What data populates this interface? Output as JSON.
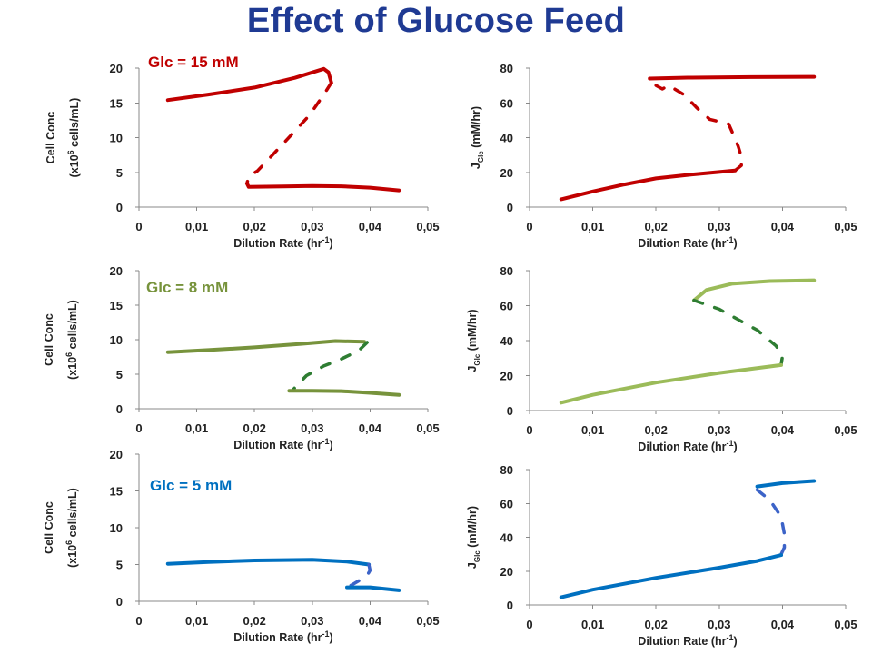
{
  "title": "Effect of Glucose Feed",
  "chart_data": [
    {
      "id": "cell-glc15",
      "type": "line",
      "annotation": "Glc = 15 mM",
      "color": "#c00000",
      "xlabel": "Dilution Rate (hr",
      "xlabel_sup": "-1",
      "xlabel_end": ")",
      "ylabel_line1": "Cell Conc",
      "ylabel_pre": "(x10",
      "ylabel_sup": "6",
      "ylabel_post": " cells/mL)",
      "xlim": [
        0,
        0.05
      ],
      "ylim": [
        0,
        20
      ],
      "xticks": [
        "0",
        "0,01",
        "0,02",
        "0,03",
        "0,04",
        "0,05"
      ],
      "yticks": [
        "0",
        "5",
        "10",
        "15",
        "20"
      ],
      "series": [
        {
          "style": "solid",
          "points": [
            [
              0.005,
              15.4
            ],
            [
              0.012,
              16.2
            ],
            [
              0.02,
              17.2
            ],
            [
              0.027,
              18.6
            ],
            [
              0.032,
              19.9
            ],
            [
              0.0328,
              19.4
            ],
            [
              0.0333,
              17.9
            ]
          ]
        },
        {
          "style": "dashed",
          "points": [
            [
              0.0333,
              17.9
            ],
            [
              0.032,
              16.2
            ],
            [
              0.0295,
              13.2
            ],
            [
              0.0265,
              10.5
            ],
            [
              0.023,
              7.4
            ],
            [
              0.0205,
              5.2
            ],
            [
              0.019,
              4.4
            ],
            [
              0.0187,
              3.4
            ]
          ]
        },
        {
          "style": "solid",
          "points": [
            [
              0.0187,
              3.4
            ],
            [
              0.019,
              2.9
            ],
            [
              0.025,
              2.98
            ],
            [
              0.03,
              3.05
            ],
            [
              0.035,
              3.0
            ],
            [
              0.04,
              2.8
            ],
            [
              0.045,
              2.4
            ]
          ]
        }
      ]
    },
    {
      "id": "flux-glc15",
      "type": "line",
      "color": "#c00000",
      "xlabel": "Dilution Rate (hr",
      "xlabel_sup": "-1",
      "xlabel_end": ")",
      "ylabel_pre": "J",
      "ylabel_sub": "Glc",
      "ylabel_post": " (mM/hr)",
      "xlim": [
        0,
        0.05
      ],
      "ylim": [
        0,
        80
      ],
      "xticks": [
        "0",
        "0,01",
        "0,02",
        "0,03",
        "0,04",
        "0,05"
      ],
      "yticks": [
        "0",
        "20",
        "40",
        "60",
        "80"
      ],
      "series": [
        {
          "style": "solid",
          "points": [
            [
              0.019,
              74
            ],
            [
              0.025,
              74.5
            ],
            [
              0.035,
              74.8
            ],
            [
              0.045,
              75
            ]
          ]
        },
        {
          "style": "dashed",
          "points": [
            [
              0.02,
              70
            ],
            [
              0.021,
              68
            ],
            [
              0.022,
              70
            ],
            [
              0.0245,
              64.5
            ],
            [
              0.0265,
              57
            ],
            [
              0.0285,
              50.5
            ],
            [
              0.0315,
              47.8
            ],
            [
              0.0322,
              42
            ],
            [
              0.033,
              35
            ],
            [
              0.0335,
              29
            ],
            [
              0.0335,
              24
            ],
            [
              0.0325,
              21
            ]
          ]
        },
        {
          "style": "solid",
          "points": [
            [
              0.005,
              4.5
            ],
            [
              0.01,
              9
            ],
            [
              0.015,
              13
            ],
            [
              0.02,
              16.5
            ],
            [
              0.025,
              18.5
            ],
            [
              0.0325,
              21
            ]
          ]
        }
      ]
    },
    {
      "id": "cell-glc8",
      "type": "line",
      "annotation": "Glc = 8 mM",
      "color": "#77933c",
      "xlabel": "Dilution Rate (hr",
      "xlabel_sup": "-1",
      "xlabel_end": ")",
      "ylabel_line1": "Cell Conc",
      "ylabel_pre": "(x10",
      "ylabel_sup": "6",
      "ylabel_post": " cells/mL)",
      "xlim": [
        0,
        0.05
      ],
      "ylim": [
        0,
        20
      ],
      "xticks": [
        "0",
        "0,01",
        "0,02",
        "0,03",
        "0,04",
        "0,05"
      ],
      "yticks": [
        "0",
        "5",
        "10",
        "15",
        "20"
      ],
      "series": [
        {
          "style": "solid",
          "points": [
            [
              0.005,
              8.2
            ],
            [
              0.012,
              8.5
            ],
            [
              0.02,
              8.9
            ],
            [
              0.028,
              9.4
            ],
            [
              0.034,
              9.8
            ],
            [
              0.039,
              9.7
            ]
          ]
        },
        {
          "style": "dashed",
          "color_override": "#2e7d32",
          "points": [
            [
              0.0395,
              9.6
            ],
            [
              0.038,
              8.4
            ],
            [
              0.035,
              7.2
            ],
            [
              0.032,
              6.2
            ],
            [
              0.029,
              4.8
            ],
            [
              0.0275,
              3.5
            ],
            [
              0.0265,
              2.6
            ]
          ]
        },
        {
          "style": "solid",
          "points": [
            [
              0.026,
              2.6
            ],
            [
              0.03,
              2.6
            ],
            [
              0.035,
              2.55
            ],
            [
              0.04,
              2.3
            ],
            [
              0.045,
              2.0
            ]
          ]
        }
      ]
    },
    {
      "id": "flux-glc8",
      "type": "line",
      "color": "#9bbb59",
      "xlabel": "Dilution Rate (hr",
      "xlabel_sup": "-1",
      "xlabel_end": ")",
      "ylabel_pre": "J",
      "ylabel_sub": "Glc",
      "ylabel_post": " (mM/hr)",
      "xlim": [
        0,
        0.05
      ],
      "ylim": [
        0,
        80
      ],
      "xticks": [
        "0",
        "0,01",
        "0,02",
        "0,03",
        "0,04",
        "0,05"
      ],
      "yticks": [
        "0",
        "20",
        "40",
        "60",
        "80"
      ],
      "series": [
        {
          "style": "solid",
          "points": [
            [
              0.026,
              63
            ],
            [
              0.028,
              69
            ],
            [
              0.032,
              72.5
            ],
            [
              0.038,
              74
            ],
            [
              0.045,
              74.5
            ]
          ]
        },
        {
          "style": "dashed",
          "color_override": "#2e7d32",
          "points": [
            [
              0.026,
              63
            ],
            [
              0.03,
              58
            ],
            [
              0.033,
              52
            ],
            [
              0.036,
              46
            ],
            [
              0.039,
              37
            ],
            [
              0.04,
              31
            ],
            [
              0.0398,
              26.5
            ]
          ]
        },
        {
          "style": "solid",
          "points": [
            [
              0.005,
              4.5
            ],
            [
              0.01,
              9
            ],
            [
              0.02,
              16
            ],
            [
              0.03,
              21.5
            ],
            [
              0.0398,
              26
            ]
          ]
        }
      ]
    },
    {
      "id": "cell-glc5",
      "type": "line",
      "annotation": "Glc = 5 mM",
      "color": "#0070c0",
      "xlabel": "Dilution Rate (hr",
      "xlabel_sup": "-1",
      "xlabel_end": ")",
      "ylabel_line1": "Cell Conc",
      "ylabel_pre": "(x10",
      "ylabel_sup": "6",
      "ylabel_post": " cells/mL)",
      "xlim": [
        0,
        0.05
      ],
      "ylim": [
        0,
        20
      ],
      "xticks": [
        "0",
        "0,01",
        "0,02",
        "0,03",
        "0,04",
        "0,05"
      ],
      "yticks": [
        "0",
        "5",
        "10",
        "15",
        "20"
      ],
      "series": [
        {
          "style": "solid",
          "points": [
            [
              0.005,
              5.1
            ],
            [
              0.012,
              5.35
            ],
            [
              0.02,
              5.55
            ],
            [
              0.03,
              5.65
            ],
            [
              0.036,
              5.4
            ],
            [
              0.0398,
              5.0
            ]
          ]
        },
        {
          "style": "dashed",
          "color_override": "#3c63c8",
          "points": [
            [
              0.0398,
              5.0
            ],
            [
              0.04,
              4.2
            ],
            [
              0.0395,
              3.5
            ],
            [
              0.0385,
              3.0
            ],
            [
              0.037,
              2.3
            ],
            [
              0.036,
              1.9
            ]
          ]
        },
        {
          "style": "solid",
          "points": [
            [
              0.036,
              1.9
            ],
            [
              0.04,
              1.9
            ],
            [
              0.045,
              1.5
            ]
          ]
        }
      ]
    },
    {
      "id": "flux-glc5",
      "type": "line",
      "color": "#0070c0",
      "xlabel": "Dilution Rate (hr",
      "xlabel_sup": "-1",
      "xlabel_end": ")",
      "ylabel_pre": "J",
      "ylabel_sub": "Glc",
      "ylabel_post": " (mM/hr)",
      "xlim": [
        0,
        0.05
      ],
      "ylim": [
        0,
        80
      ],
      "xticks": [
        "0",
        "0,01",
        "0,02",
        "0,03",
        "0,04",
        "0,05"
      ],
      "yticks": [
        "0",
        "20",
        "40",
        "60",
        "80"
      ],
      "series": [
        {
          "style": "solid",
          "points": [
            [
              0.036,
              70
            ],
            [
              0.04,
              72
            ],
            [
              0.045,
              73.3
            ]
          ]
        },
        {
          "style": "dashed",
          "color_override": "#3c63c8",
          "points": [
            [
              0.036,
              68
            ],
            [
              0.038,
              62
            ],
            [
              0.0398,
              52
            ],
            [
              0.0403,
              42
            ],
            [
              0.0403,
              34
            ],
            [
              0.0398,
              30
            ]
          ]
        },
        {
          "style": "solid",
          "points": [
            [
              0.005,
              4.5
            ],
            [
              0.01,
              9
            ],
            [
              0.02,
              16
            ],
            [
              0.03,
              22
            ],
            [
              0.036,
              26
            ],
            [
              0.0398,
              29.5
            ]
          ]
        }
      ]
    }
  ]
}
